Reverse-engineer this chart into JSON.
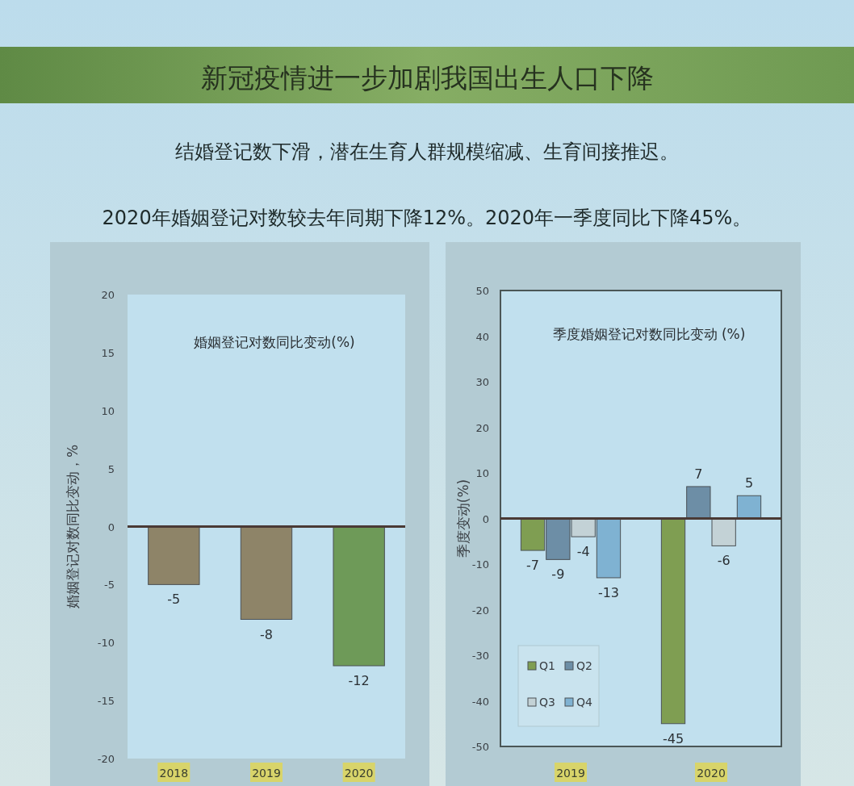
{
  "chart_data": [
    {
      "type": "other",
      "title": "新冠疫情进一步加剧我国出生人口下降",
      "annotations": [
        "结婚登记数下滑，潜在生育人群规模缩减、生育间接推迟。",
        "2020年婚姻登记对数较去年同期下降12%。2020年一季度同比下降45%。"
      ]
    },
    {
      "type": "bar",
      "title": "婚姻登记对数同比变动(%)",
      "ylabel": "婚姻登记对数同比变动，%",
      "categories": [
        "2018",
        "2019",
        "2020"
      ],
      "values": [
        -5,
        -8,
        -12
      ],
      "colors": [
        "#8e8468",
        "#8e8468",
        "#6e9a58"
      ],
      "ylim": [
        -20,
        20
      ],
      "yticks": [
        -20,
        -15,
        -10,
        -5,
        0,
        5,
        10,
        15,
        20
      ],
      "data_labels": true
    },
    {
      "type": "bar",
      "title": "季度婚姻登记对数同比变动 (%)",
      "ylabel": "季度变动(%)",
      "categories": [
        "2019",
        "2020"
      ],
      "series": [
        {
          "name": "Q1",
          "color": "#7f9e52",
          "values": [
            -7,
            -45
          ]
        },
        {
          "name": "Q2",
          "color": "#6d8ea6",
          "values": [
            -9,
            7
          ]
        },
        {
          "name": "Q3",
          "color": "#c3d2d6",
          "values": [
            -4,
            -6
          ]
        },
        {
          "name": "Q4",
          "color": "#7fb2d2",
          "values": [
            -13,
            5
          ]
        }
      ],
      "ylim": [
        -50,
        50
      ],
      "yticks": [
        -50,
        -40,
        -30,
        -20,
        -10,
        0,
        10,
        20,
        30,
        40,
        50
      ],
      "data_labels": true,
      "legend": "bottom left"
    }
  ]
}
